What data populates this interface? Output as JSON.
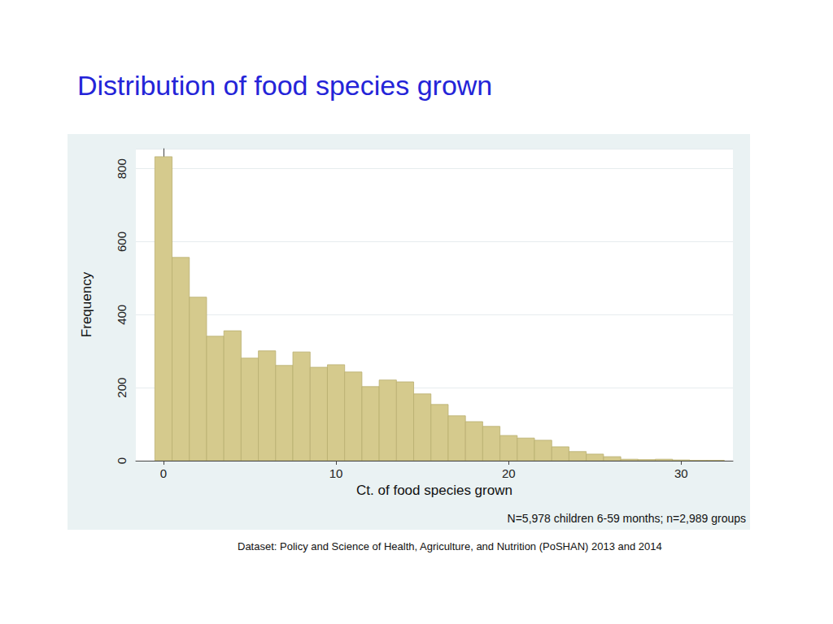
{
  "chart_data": {
    "type": "histogram",
    "title": "Distribution of food species grown",
    "x_label": "Ct. of food species grown",
    "y_label": "Frequency",
    "annotations": [
      "N=5,978 children 6-59 months; n=2,989 groups",
      "Dataset: Policy and Science of Health, Agriculture, and Nutrition (PoSHAN) 2013 and 2014"
    ],
    "bins": [
      -0.5,
      0.5,
      1.5,
      2.5,
      3.5,
      4.5,
      5.5,
      6.5,
      7.5,
      8.5,
      9.5,
      10.5,
      11.5,
      12.5,
      13.5,
      14.5,
      15.5,
      16.5,
      17.5,
      18.5,
      19.5,
      20.5,
      21.5,
      22.5,
      23.5,
      24.5,
      25.5,
      26.5,
      27.5,
      28.5,
      29.5,
      30.5,
      31.5,
      32.5
    ],
    "values": [
      833,
      557,
      448,
      341,
      356,
      281,
      301,
      261,
      298,
      256,
      263,
      243,
      203,
      221,
      216,
      183,
      154,
      123,
      107,
      94,
      69,
      62,
      56,
      38,
      25,
      18,
      11,
      4,
      3,
      4,
      2,
      1,
      1
    ],
    "color": "#d5ca8d",
    "xlim": [
      -1.6,
      33
    ],
    "xticks": [
      0,
      10,
      20,
      30
    ],
    "ylim": [
      0,
      855
    ],
    "yticks": [
      0,
      200,
      400,
      600,
      800
    ],
    "grid": true
  }
}
